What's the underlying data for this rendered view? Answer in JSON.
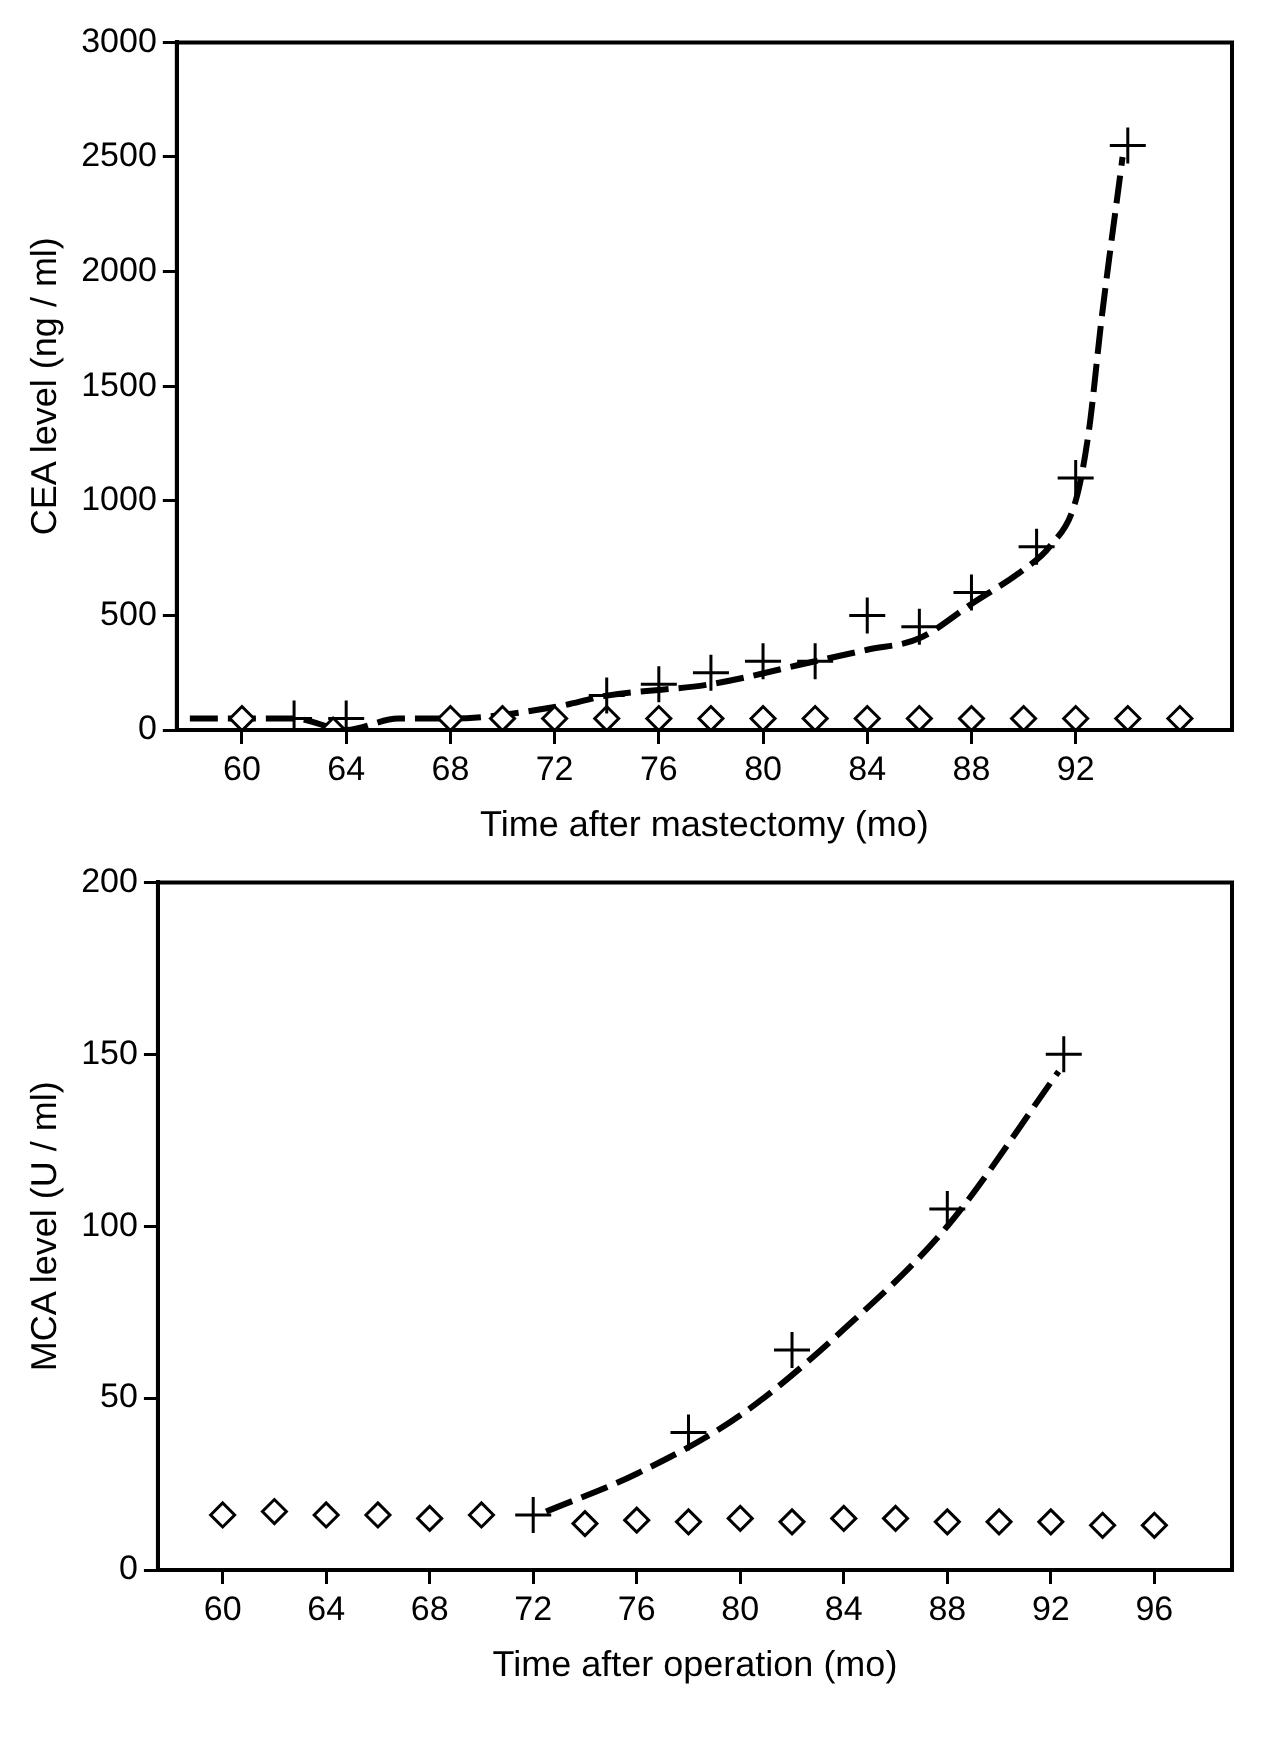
{
  "chart_data": [
    {
      "type": "scatter",
      "xlabel": "Time after mastectomy (mo)",
      "ylabel": "CEA level (ng / ml)",
      "xlim": [
        57.5,
        98
      ],
      "xticks": [
        60,
        64,
        68,
        72,
        76,
        80,
        84,
        88,
        92
      ],
      "ylim": [
        0,
        3000
      ],
      "yticks": [
        0,
        500,
        1000,
        1500,
        2000,
        2500,
        3000
      ],
      "grid": false,
      "legend": false,
      "series": [
        {
          "type": "line",
          "color": "#000000",
          "marker": "none",
          "line_style": "dashed",
          "x": [
            58,
            60,
            62,
            64,
            66,
            68,
            72,
            74,
            78,
            82,
            84,
            86,
            88,
            90,
            91,
            92,
            92.5,
            93,
            93.8
          ],
          "values": [
            50,
            50,
            50,
            0,
            50,
            50,
            100,
            150,
            200,
            300,
            350,
            400,
            550,
            700,
            800,
            1000,
            1300,
            1800,
            2500
          ]
        },
        {
          "type": "scatter",
          "color": "#000000",
          "marker": "cross",
          "x": [
            62,
            64,
            74,
            76,
            78,
            80,
            82,
            84,
            86,
            88,
            90.5,
            92,
            94
          ],
          "values": [
            50,
            50,
            150,
            200,
            250,
            300,
            300,
            500,
            450,
            600,
            800,
            1100,
            2550
          ]
        },
        {
          "type": "scatter",
          "color": "#000000",
          "marker": "diamond",
          "x": [
            60,
            63.5,
            68,
            70,
            72,
            74,
            76,
            78,
            80,
            82,
            84,
            86,
            88,
            90,
            92,
            94,
            96
          ],
          "values": [
            50,
            0,
            50,
            50,
            50,
            50,
            50,
            50,
            50,
            50,
            50,
            50,
            50,
            50,
            50,
            50,
            50
          ]
        }
      ]
    },
    {
      "type": "scatter",
      "xlabel": "Time after operation (mo)",
      "ylabel": "MCA level (U / ml)",
      "xlim": [
        57.5,
        99
      ],
      "xticks": [
        60,
        64,
        68,
        72,
        76,
        80,
        84,
        88,
        92,
        96
      ],
      "ylim": [
        0,
        200
      ],
      "yticks": [
        0,
        50,
        100,
        150,
        200
      ],
      "grid": false,
      "legend": false,
      "series": [
        {
          "type": "line",
          "color": "#000000",
          "marker": "none",
          "line_style": "dashed",
          "x": [
            72.5,
            76,
            80,
            84,
            88,
            92.3
          ],
          "values": [
            17,
            28,
            45,
            70,
            100,
            145
          ]
        },
        {
          "type": "scatter",
          "color": "#000000",
          "marker": "cross",
          "x": [
            72,
            78,
            82,
            88,
            92.5
          ],
          "values": [
            16,
            40,
            64,
            105,
            150
          ]
        },
        {
          "type": "scatter",
          "color": "#000000",
          "marker": "diamond",
          "x": [
            60,
            62,
            64,
            66,
            68,
            70,
            74,
            76,
            78,
            80,
            82,
            84,
            86,
            88,
            90,
            92,
            94,
            96
          ],
          "values": [
            16,
            17,
            16,
            16,
            15,
            16,
            13.5,
            14.5,
            14,
            15,
            14,
            15,
            15,
            14,
            14,
            14,
            13,
            13
          ]
        }
      ]
    }
  ]
}
